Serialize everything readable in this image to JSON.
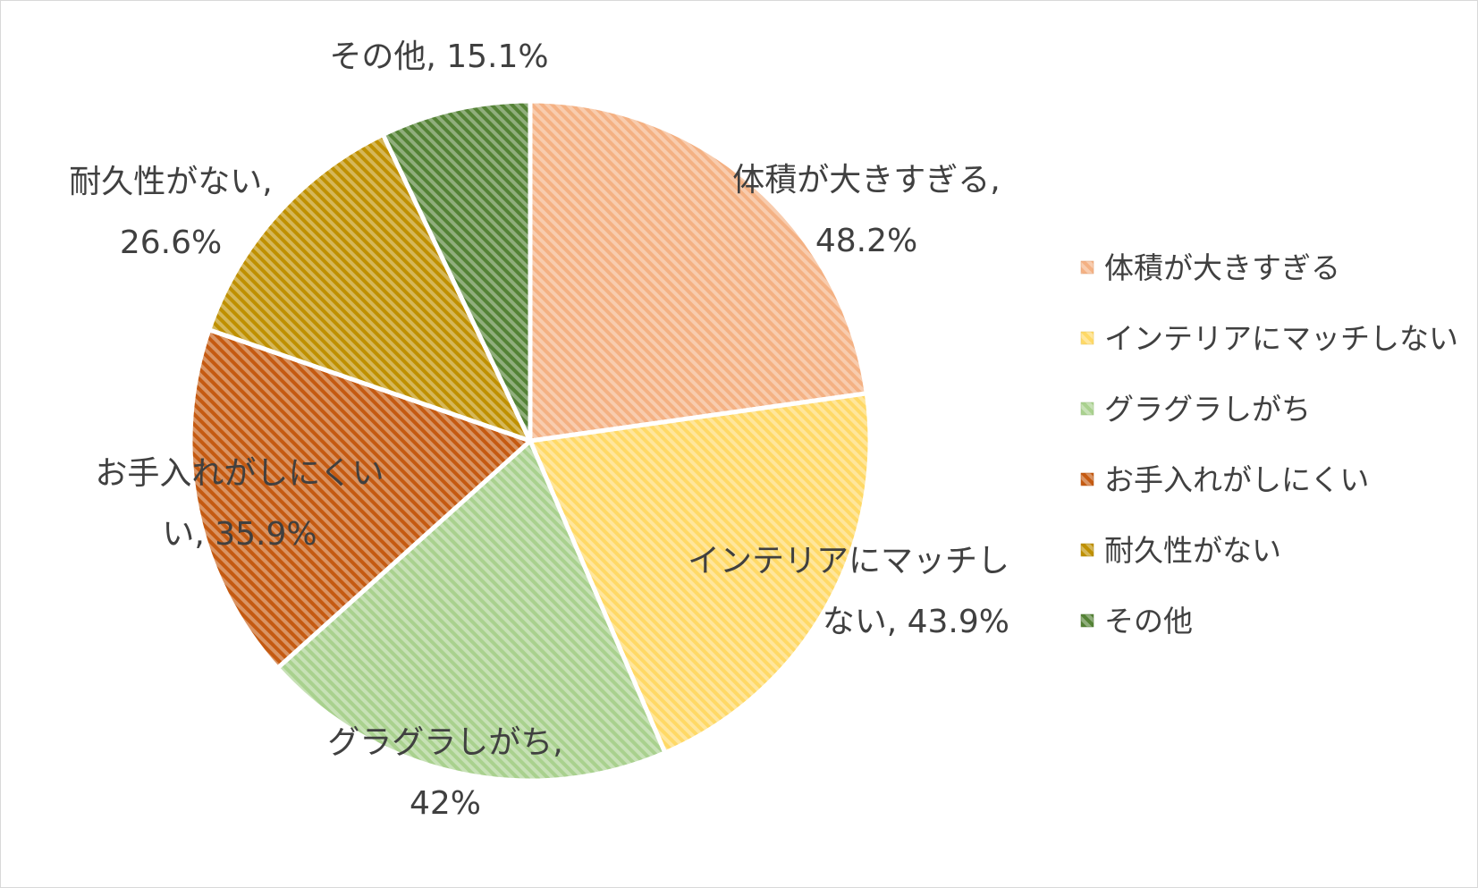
{
  "chart_data": {
    "type": "pie",
    "title": "",
    "legend_position": "right",
    "categories": [
      "体積が大きすぎる",
      "インテリアにマッチしない",
      "グラグラしがち",
      "お手入れがしにくい",
      "耐久性がない",
      "その他"
    ],
    "values": [
      48.2,
      43.9,
      42,
      35.9,
      26.6,
      15.1
    ],
    "colors": [
      "#f4b183",
      "#ffd966",
      "#a9d18e",
      "#c55a11",
      "#bf9000",
      "#548235"
    ],
    "data_labels": [
      [
        "体積が大きすぎる,",
        "48.2%"
      ],
      [
        "インテリアにマッチし",
        "ない, 43.9%"
      ],
      [
        "グラグラしがち,",
        "42%"
      ],
      [
        "お手入れがしにくい",
        "い, 35.9%"
      ],
      [
        "耐久性がない,",
        "26.6%"
      ],
      [
        "その他, 15.1%"
      ]
    ]
  }
}
